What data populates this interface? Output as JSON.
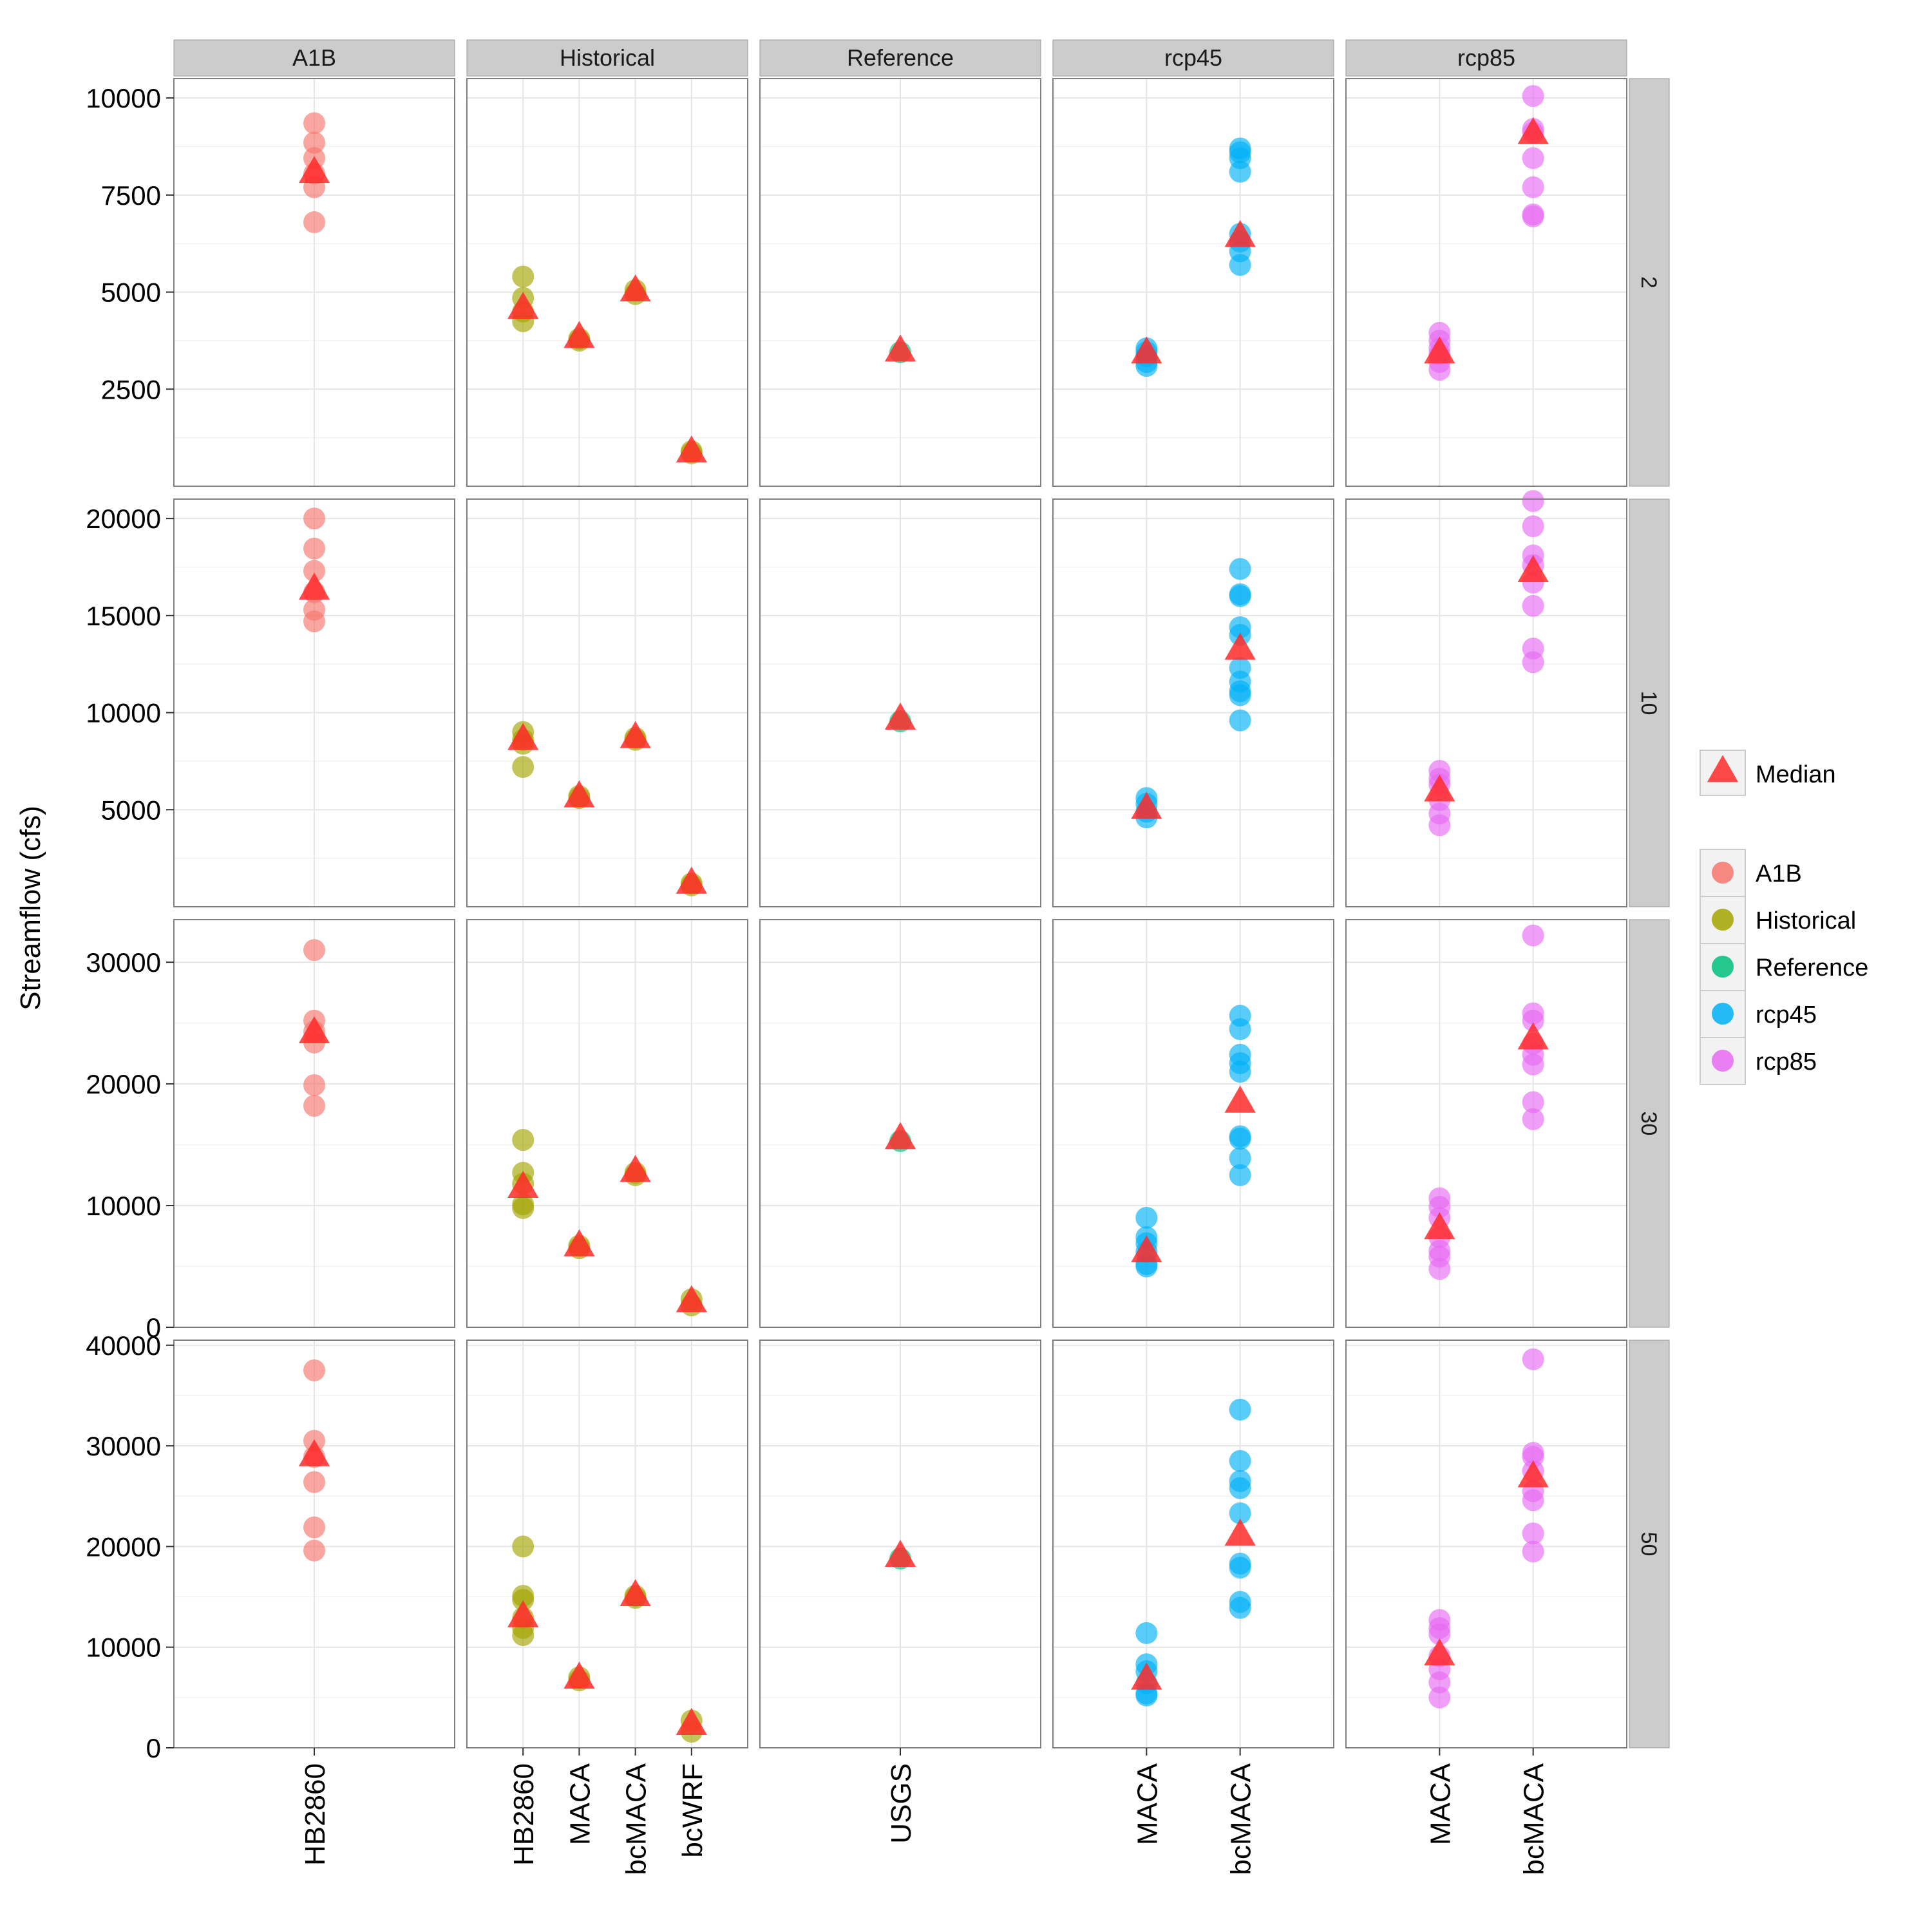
{
  "chart_data": {
    "type": "scatter",
    "ylabel": "Streamflow (cfs)",
    "xlabel": "",
    "column_facets": [
      {
        "label": "A1B",
        "categories": [
          "HB2860"
        ]
      },
      {
        "label": "Historical",
        "categories": [
          "HB2860",
          "MACA",
          "bcMACA",
          "bcWRF"
        ]
      },
      {
        "label": "Reference",
        "categories": [
          "USGS"
        ]
      },
      {
        "label": "rcp45",
        "categories": [
          "MACA",
          "bcMACA"
        ]
      },
      {
        "label": "rcp85",
        "categories": [
          "MACA",
          "bcMACA"
        ]
      }
    ],
    "row_facets": [
      {
        "label": "2",
        "ylim": [
          0,
          10500
        ],
        "yticks": [
          2500,
          5000,
          7500,
          10000
        ]
      },
      {
        "label": "10",
        "ylim": [
          0,
          21000
        ],
        "yticks": [
          5000,
          10000,
          15000,
          20000
        ]
      },
      {
        "label": "30",
        "ylim": [
          0,
          33500
        ],
        "yticks": [
          0,
          10000,
          20000,
          30000
        ]
      },
      {
        "label": "50",
        "ylim": [
          0,
          40500
        ],
        "yticks": [
          0,
          10000,
          20000,
          30000,
          40000
        ]
      }
    ],
    "series_colors": {
      "A1B": "#F8766D",
      "Historical": "#A3A500",
      "Reference": "#00BF7D",
      "rcp45": "#00B0F6",
      "rcp85": "#E76BF3",
      "Median": "#FF2A2A"
    },
    "legend": {
      "median_label": "Median",
      "groups": [
        "A1B",
        "Historical",
        "Reference",
        "rcp45",
        "rcp85"
      ],
      "position": "right"
    },
    "grid": true,
    "panels": [
      {
        "row": 0,
        "col": 0,
        "points": {
          "HB2860": [
            9350,
            8850,
            8450,
            8050,
            7700,
            6800
          ]
        },
        "median": {
          "HB2860": 8050
        }
      },
      {
        "row": 0,
        "col": 1,
        "points": {
          "HB2860": [
            5400,
            4850,
            4500,
            4250
          ],
          "MACA": [
            3800,
            3750
          ],
          "bcMACA": [
            5050,
            4950
          ],
          "bcWRF": [
            900,
            850
          ]
        },
        "median": {
          "HB2860": 4550,
          "MACA": 3800,
          "bcMACA": 5000,
          "bcWRF": 850
        }
      },
      {
        "row": 0,
        "col": 2,
        "points": {
          "USGS": [
            3450
          ]
        },
        "median": {
          "USGS": 3450
        }
      },
      {
        "row": 0,
        "col": 3,
        "points": {
          "MACA": [
            3550,
            3450,
            3350,
            3200,
            3100
          ],
          "bcMACA": [
            8700,
            8600,
            8450,
            8100,
            6500,
            6300,
            6050,
            5700
          ]
        },
        "median": {
          "MACA": 3400,
          "bcMACA": 6400
        }
      },
      {
        "row": 0,
        "col": 4,
        "points": {
          "MACA": [
            3950,
            3750,
            3550,
            3400,
            3200,
            3000
          ],
          "bcMACA": [
            10050,
            9200,
            9100,
            8450,
            7700,
            7000,
            6950
          ]
        },
        "median": {
          "MACA": 3400,
          "bcMACA": 9050
        }
      },
      {
        "row": 1,
        "col": 0,
        "points": {
          "HB2860": [
            20000,
            18450,
            17300,
            16200,
            15300,
            14700
          ]
        },
        "median": {
          "HB2860": 16300
        }
      },
      {
        "row": 1,
        "col": 1,
        "points": {
          "HB2860": [
            9000,
            8600,
            8400,
            7200
          ],
          "MACA": [
            5700,
            5600
          ],
          "bcMACA": [
            8700,
            8600
          ],
          "bcWRF": [
            1200,
            1100
          ]
        },
        "median": {
          "HB2860": 8550,
          "MACA": 5600,
          "bcMACA": 8650,
          "bcWRF": 1150
        }
      },
      {
        "row": 1,
        "col": 2,
        "points": {
          "USGS": [
            9550
          ]
        },
        "median": {
          "USGS": 9600
        }
      },
      {
        "row": 1,
        "col": 3,
        "points": {
          "MACA": [
            5600,
            5300,
            4900,
            4600
          ],
          "bcMACA": [
            17400,
            16100,
            16000,
            14400,
            14000,
            12300,
            11600,
            11100,
            10900,
            9600
          ]
        },
        "median": {
          "MACA": 5000,
          "bcMACA": 13200
        }
      },
      {
        "row": 1,
        "col": 4,
        "points": {
          "MACA": [
            7000,
            6600,
            6300,
            5500,
            4800,
            4200
          ],
          "bcMACA": [
            20900,
            19600,
            18100,
            17600,
            16700,
            15500,
            13300,
            12600
          ]
        },
        "median": {
          "MACA": 5900,
          "bcMACA": 17200
        }
      },
      {
        "row": 2,
        "col": 0,
        "points": {
          "HB2860": [
            31000,
            25200,
            24300,
            23400,
            19900,
            18200
          ]
        },
        "median": {
          "HB2860": 24100
        }
      },
      {
        "row": 2,
        "col": 1,
        "points": {
          "HB2860": [
            15400,
            12700,
            11800,
            10100,
            9800
          ],
          "MACA": [
            6700,
            6500
          ],
          "bcMACA": [
            12700,
            12500
          ],
          "bcWRF": [
            2300,
            1800
          ]
        },
        "median": {
          "HB2860": 11400,
          "MACA": 6600,
          "bcMACA": 12700,
          "bcWRF": 2000
        }
      },
      {
        "row": 2,
        "col": 2,
        "points": {
          "USGS": [
            15300
          ]
        },
        "median": {
          "USGS": 15400
        }
      },
      {
        "row": 2,
        "col": 3,
        "points": {
          "MACA": [
            9000,
            7400,
            6900,
            6200,
            5200,
            5000
          ],
          "bcMACA": [
            25600,
            24500,
            22400,
            21700,
            21000,
            15700,
            15500,
            13900,
            12500
          ]
        },
        "median": {
          "MACA": 6100,
          "bcMACA": 18400
        }
      },
      {
        "row": 2,
        "col": 4,
        "points": {
          "MACA": [
            10600,
            9900,
            9000,
            7400,
            6300,
            5800,
            4800
          ],
          "bcMACA": [
            32200,
            25800,
            25200,
            23300,
            22400,
            21600,
            18500,
            17100
          ]
        },
        "median": {
          "MACA": 8000,
          "bcMACA": 23600
        }
      },
      {
        "row": 3,
        "col": 0,
        "points": {
          "HB2860": [
            37500,
            30500,
            28900,
            26400,
            21900,
            19600
          ]
        },
        "median": {
          "HB2860": 28900
        }
      },
      {
        "row": 3,
        "col": 1,
        "points": {
          "HB2860": [
            20000,
            15100,
            14700,
            12900,
            11900,
            11200
          ],
          "MACA": [
            7000,
            6700
          ],
          "bcMACA": [
            15100,
            14900
          ],
          "bcWRF": [
            2700,
            1600
          ]
        },
        "median": {
          "HB2860": 12900,
          "MACA": 6800,
          "bcMACA": 15000,
          "bcWRF": 2200
        }
      },
      {
        "row": 3,
        "col": 2,
        "points": {
          "USGS": [
            18800
          ]
        },
        "median": {
          "USGS": 18900
        }
      },
      {
        "row": 3,
        "col": 3,
        "points": {
          "MACA": [
            11400,
            8300,
            7600,
            6400,
            5400,
            5200
          ],
          "bcMACA": [
            33600,
            28500,
            26500,
            25800,
            23300,
            18300,
            17900,
            14500,
            13900
          ]
        },
        "median": {
          "MACA": 6700,
          "bcMACA": 21000
        }
      },
      {
        "row": 3,
        "col": 4,
        "points": {
          "MACA": [
            12700,
            11900,
            11300,
            9100,
            7800,
            6500,
            5000
          ],
          "bcMACA": [
            38600,
            29300,
            28900,
            27500,
            25500,
            24600,
            21300,
            19500
          ]
        },
        "median": {
          "MACA": 9100,
          "bcMACA": 26800
        }
      }
    ]
  }
}
